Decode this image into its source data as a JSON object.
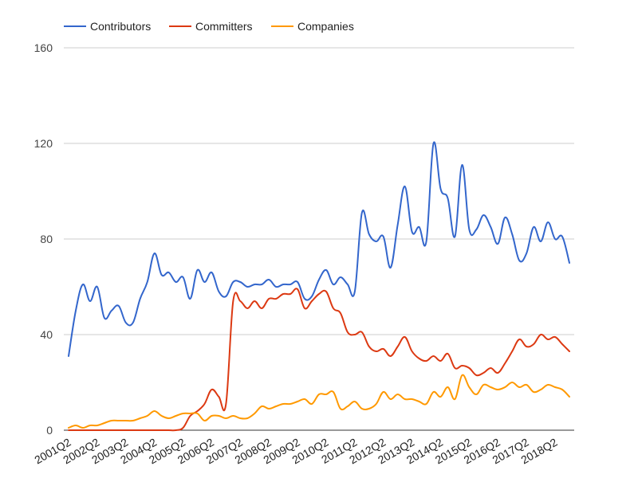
{
  "chart_data": {
    "type": "line",
    "title": "",
    "xlabel": "",
    "ylabel": "",
    "ylim": [
      0,
      160
    ],
    "y_ticks": [
      0,
      40,
      80,
      120,
      160
    ],
    "grid": true,
    "legend_position": "top-left",
    "x_tick_labels": [
      "2001Q2",
      "2002Q2",
      "2003Q2",
      "2004Q2",
      "2005Q2",
      "2006Q2",
      "2007Q2",
      "2008Q2",
      "2009Q2",
      "2010Q2",
      "2011Q2",
      "2012Q2",
      "2013Q2",
      "2014Q2",
      "2015Q2",
      "2016Q2",
      "2017Q2",
      "2018Q2"
    ],
    "x": [
      "2001Q2",
      "2001Q3",
      "2001Q4",
      "2002Q1",
      "2002Q2",
      "2002Q3",
      "2002Q4",
      "2003Q1",
      "2003Q2",
      "2003Q3",
      "2003Q4",
      "2004Q1",
      "2004Q2",
      "2004Q3",
      "2004Q4",
      "2005Q1",
      "2005Q2",
      "2005Q3",
      "2005Q4",
      "2006Q1",
      "2006Q2",
      "2006Q3",
      "2006Q4",
      "2007Q1",
      "2007Q2",
      "2007Q3",
      "2007Q4",
      "2008Q1",
      "2008Q2",
      "2008Q3",
      "2008Q4",
      "2009Q1",
      "2009Q2",
      "2009Q3",
      "2009Q4",
      "2010Q1",
      "2010Q2",
      "2010Q3",
      "2010Q4",
      "2011Q1",
      "2011Q2",
      "2011Q3",
      "2011Q4",
      "2012Q1",
      "2012Q2",
      "2012Q3",
      "2012Q4",
      "2013Q1",
      "2013Q2",
      "2013Q3",
      "2013Q4",
      "2014Q1",
      "2014Q2",
      "2014Q3",
      "2014Q4",
      "2015Q1",
      "2015Q2",
      "2015Q3",
      "2015Q4",
      "2016Q1",
      "2016Q2",
      "2016Q3",
      "2016Q4",
      "2017Q1",
      "2017Q2",
      "2017Q3",
      "2017Q4",
      "2018Q1",
      "2018Q2",
      "2018Q3",
      "2018Q4"
    ],
    "series": [
      {
        "name": "Contributors",
        "color": "#3366cc",
        "values": [
          31,
          50,
          61,
          54,
          60,
          47,
          50,
          52,
          45,
          45,
          55,
          62,
          74,
          65,
          66,
          62,
          64,
          55,
          67,
          62,
          66,
          58,
          56,
          62,
          62,
          60,
          61,
          61,
          63,
          60,
          61,
          61,
          62,
          55,
          56,
          63,
          67,
          61,
          64,
          61,
          58,
          91,
          82,
          79,
          81,
          68,
          86,
          102,
          83,
          85,
          79,
          120,
          101,
          97,
          81,
          111,
          84,
          84,
          90,
          85,
          78,
          89,
          82,
          71,
          74,
          85,
          79,
          87,
          80,
          81,
          70
        ]
      },
      {
        "name": "Committers",
        "color": "#dc3912",
        "values": [
          0,
          0,
          0,
          0,
          0,
          0,
          0,
          0,
          0,
          0,
          0,
          0,
          0,
          0,
          0,
          0,
          1,
          6,
          8,
          11,
          17,
          14,
          11,
          54,
          54,
          51,
          54,
          51,
          55,
          55,
          57,
          57,
          59,
          51,
          54,
          57,
          58,
          51,
          49,
          41,
          40,
          41,
          35,
          33,
          34,
          31,
          35,
          39,
          33,
          30,
          29,
          31,
          29,
          32,
          26,
          27,
          26,
          23,
          24,
          26,
          24,
          28,
          33,
          38,
          35,
          36,
          40,
          38,
          39,
          36,
          33
        ]
      },
      {
        "name": "Companies",
        "color": "#ff9900",
        "values": [
          1,
          2,
          1,
          2,
          2,
          3,
          4,
          4,
          4,
          4,
          5,
          6,
          8,
          6,
          5,
          6,
          7,
          7,
          7,
          4,
          6,
          6,
          5,
          6,
          5,
          5,
          7,
          10,
          9,
          10,
          11,
          11,
          12,
          13,
          11,
          15,
          15,
          16,
          9,
          10,
          12,
          9,
          9,
          11,
          16,
          13,
          15,
          13,
          13,
          12,
          11,
          16,
          14,
          18,
          13,
          23,
          18,
          15,
          19,
          18,
          17,
          18,
          20,
          18,
          19,
          16,
          17,
          19,
          18,
          17,
          14
        ]
      }
    ]
  }
}
